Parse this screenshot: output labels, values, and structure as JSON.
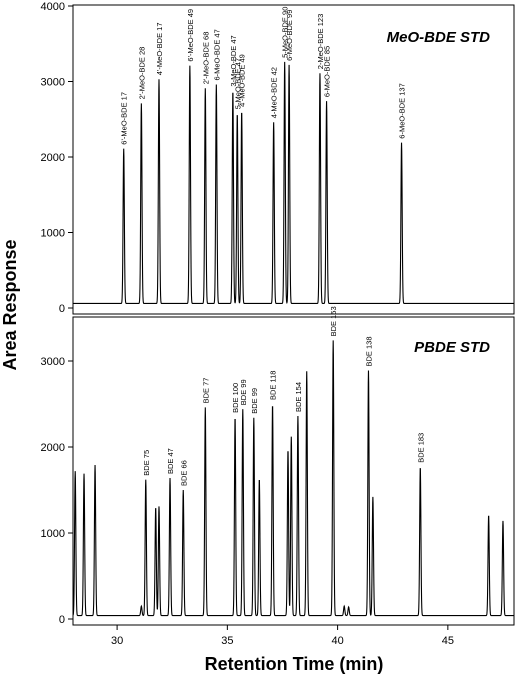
{
  "chart_data": [
    {
      "type": "line",
      "title": "MeO-BDE STD",
      "xlim": [
        28,
        48
      ],
      "ylim": [
        0,
        4000
      ],
      "y_ticks": [
        "0",
        "1000",
        "2000",
        "3000",
        "4000"
      ],
      "baseline": 60,
      "peaks": [
        {
          "rt": 30.3,
          "height": 2050,
          "label": "6'-MeO-BDE 17"
        },
        {
          "rt": 31.1,
          "height": 2650,
          "label": "2'-MeO-BDE 28"
        },
        {
          "rt": 31.9,
          "height": 2970,
          "label": "4'-MeO-BDE 17"
        },
        {
          "rt": 33.3,
          "height": 3150,
          "label": "6'-MeO-BDE 49"
        },
        {
          "rt": 34.0,
          "height": 2850,
          "label": "2'-MeO-BDE 68"
        },
        {
          "rt": 34.5,
          "height": 2900,
          "label": "6-MeO-BDE 47"
        },
        {
          "rt": 35.25,
          "height": 2820,
          "label": "3-MeO-BDE 47"
        },
        {
          "rt": 35.45,
          "height": 2520,
          "label": "5-MeO-BDE 47"
        },
        {
          "rt": 35.65,
          "height": 2550,
          "label": "4'-MeO-BDE 49"
        },
        {
          "rt": 37.1,
          "height": 2400,
          "label": "4-MeO-BDE 42"
        },
        {
          "rt": 37.6,
          "height": 3200,
          "label": "5-MeO-BDE 90"
        },
        {
          "rt": 37.8,
          "height": 3160,
          "label": "6-MeO-BDE 99"
        },
        {
          "rt": 39.2,
          "height": 3050,
          "label": "2-MeO-BDE 123"
        },
        {
          "rt": 39.5,
          "height": 2680,
          "label": "6-MeO-BDE 85"
        },
        {
          "rt": 42.9,
          "height": 2130,
          "label": "6-MeO-BDE 137"
        }
      ]
    },
    {
      "type": "line",
      "title": "PBDE STD",
      "xlim": [
        28,
        48
      ],
      "ylim": [
        0,
        3500
      ],
      "x_ticks": [
        "30",
        "35",
        "40",
        "45"
      ],
      "y_ticks": [
        "0",
        "1000",
        "2000",
        "3000"
      ],
      "baseline": 40,
      "peaks": [
        {
          "rt": 28.1,
          "height": 1680,
          "label": ""
        },
        {
          "rt": 28.5,
          "height": 1650,
          "label": ""
        },
        {
          "rt": 29.0,
          "height": 1750,
          "label": ""
        },
        {
          "rt": 31.1,
          "height": 110,
          "label": ""
        },
        {
          "rt": 31.3,
          "height": 1580,
          "label": "BDE 75"
        },
        {
          "rt": 31.75,
          "height": 1260,
          "label": ""
        },
        {
          "rt": 31.9,
          "height": 1270,
          "label": ""
        },
        {
          "rt": 32.4,
          "height": 1600,
          "label": "BDE 47"
        },
        {
          "rt": 33.0,
          "height": 1460,
          "label": "BDE 66"
        },
        {
          "rt": 34.0,
          "height": 2420,
          "label": "BDE 77"
        },
        {
          "rt": 35.35,
          "height": 2310,
          "label": "BDE 100"
        },
        {
          "rt": 35.7,
          "height": 2400,
          "label": "BDE 99"
        },
        {
          "rt": 36.2,
          "height": 2300,
          "label": "BDE 99"
        },
        {
          "rt": 36.45,
          "height": 1590,
          "label": ""
        },
        {
          "rt": 37.05,
          "height": 2460,
          "label": "BDE 118"
        },
        {
          "rt": 37.75,
          "height": 1930,
          "label": ""
        },
        {
          "rt": 37.9,
          "height": 2080,
          "label": ""
        },
        {
          "rt": 38.2,
          "height": 2320,
          "label": "BDE 154"
        },
        {
          "rt": 38.6,
          "height": 2840,
          "label": ""
        },
        {
          "rt": 39.8,
          "height": 3200,
          "label": "BDE 153"
        },
        {
          "rt": 40.3,
          "height": 110,
          "label": ""
        },
        {
          "rt": 40.5,
          "height": 100,
          "label": ""
        },
        {
          "rt": 41.4,
          "height": 2850,
          "label": "BDE 138"
        },
        {
          "rt": 41.6,
          "height": 1380,
          "label": ""
        },
        {
          "rt": 43.75,
          "height": 1730,
          "label": "BDE 183"
        },
        {
          "rt": 46.85,
          "height": 1170,
          "label": ""
        },
        {
          "rt": 47.5,
          "height": 1100,
          "label": ""
        }
      ]
    }
  ],
  "axes": {
    "ylabel": "Area Response",
    "xlabel": "Retention Time (min)"
  }
}
